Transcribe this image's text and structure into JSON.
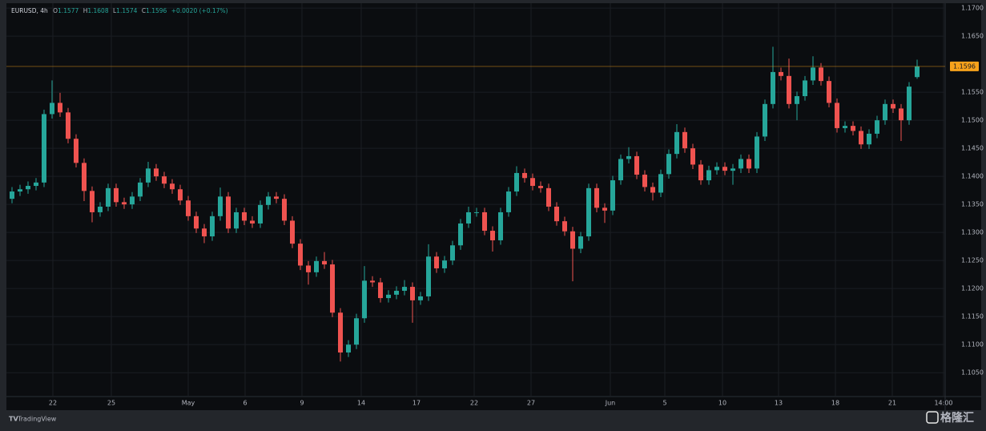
{
  "chart_data": {
    "type": "candlestick",
    "title": "EURUSD, 4h",
    "ohlc_prefixes": [
      "O",
      "H",
      "L",
      "C"
    ],
    "change_label": "+0.0020 (+0.17%)",
    "up_color": "#26a69a",
    "down_color": "#ef5350",
    "last_price_color": "#f7a21b",
    "grid": true,
    "open": [
      1.136,
      1.1373,
      1.1377,
      1.1383,
      1.1389,
      1.1511,
      1.1531,
      1.1514,
      1.1467,
      1.1424,
      1.1374,
      1.1336,
      1.1346,
      1.1379,
      1.1354,
      1.135,
      1.1364,
      1.1389,
      1.1414,
      1.14,
      1.1387,
      1.1377,
      1.1357,
      1.1329,
      1.1307,
      1.1293,
      1.1329,
      1.1364,
      1.1307,
      1.1336,
      1.1321,
      1.1316,
      1.1349,
      1.1364,
      1.136,
      1.1321,
      1.128,
      1.1241,
      1.1229,
      1.1249,
      1.1243,
      1.1157,
      1.1086,
      1.11,
      1.1147,
      1.1214,
      1.1211,
      1.1183,
      1.1189,
      1.1196,
      1.1203,
      1.1179,
      1.1186,
      1.1257,
      1.1236,
      1.125,
      1.1277,
      1.1316,
      1.1336,
      1.1336,
      1.1303,
      1.1286,
      1.1336,
      1.1373,
      1.1406,
      1.1397,
      1.1383,
      1.1379,
      1.1346,
      1.132,
      1.1302,
      1.1271,
      1.1293,
      1.1379,
      1.1344,
      1.1339,
      1.1393,
      1.1431,
      1.1436,
      1.1403,
      1.1381,
      1.1371,
      1.1404,
      1.144,
      1.1479,
      1.145,
      1.1421,
      1.1393,
      1.1411,
      1.1417,
      1.141,
      1.1414,
      1.1431,
      1.1414,
      1.1471,
      1.1529,
      1.1586,
      1.1579,
      1.1529,
      1.1543,
      1.1571,
      1.1594,
      1.157,
      1.1531,
      1.1486,
      1.149,
      1.1481,
      1.1457,
      1.1476,
      1.15,
      1.1529,
      1.1521,
      1.15,
      1.1577
    ],
    "high": [
      1.1381,
      1.1385,
      1.1391,
      1.1397,
      1.1519,
      1.1571,
      1.1549,
      1.1522,
      1.1475,
      1.1432,
      1.1382,
      1.1354,
      1.1387,
      1.1387,
      1.1362,
      1.1372,
      1.1397,
      1.1426,
      1.1422,
      1.1408,
      1.1395,
      1.1385,
      1.1365,
      1.1337,
      1.1315,
      1.1337,
      1.138,
      1.1372,
      1.1344,
      1.1344,
      1.1329,
      1.1357,
      1.1372,
      1.1372,
      1.1368,
      1.1329,
      1.1288,
      1.1249,
      1.1257,
      1.1265,
      1.1251,
      1.1165,
      1.1108,
      1.1155,
      1.124,
      1.1222,
      1.1219,
      1.1197,
      1.1204,
      1.1215,
      1.1211,
      1.1194,
      1.1279,
      1.1265,
      1.1258,
      1.1285,
      1.1324,
      1.1346,
      1.1344,
      1.1344,
      1.1311,
      1.1344,
      1.1381,
      1.1418,
      1.1414,
      1.1405,
      1.1391,
      1.1387,
      1.1354,
      1.1328,
      1.131,
      1.1301,
      1.1387,
      1.1387,
      1.1352,
      1.1401,
      1.1439,
      1.1452,
      1.1444,
      1.1411,
      1.1389,
      1.1412,
      1.1448,
      1.1493,
      1.1487,
      1.1458,
      1.1429,
      1.1419,
      1.1425,
      1.1425,
      1.1422,
      1.1439,
      1.1439,
      1.1479,
      1.1537,
      1.1631,
      1.1594,
      1.161,
      1.1551,
      1.1579,
      1.1614,
      1.1602,
      1.1578,
      1.1539,
      1.1498,
      1.1498,
      1.1489,
      1.1484,
      1.1508,
      1.1537,
      1.1537,
      1.1529,
      1.1568,
      1.1608
    ],
    "low": [
      1.1352,
      1.1365,
      1.1369,
      1.1375,
      1.1381,
      1.1503,
      1.1506,
      1.1459,
      1.1416,
      1.1356,
      1.1318,
      1.1328,
      1.1338,
      1.1346,
      1.1342,
      1.1342,
      1.1356,
      1.1381,
      1.1392,
      1.1379,
      1.1369,
      1.1349,
      1.1321,
      1.1299,
      1.1281,
      1.1285,
      1.1321,
      1.1299,
      1.1299,
      1.1313,
      1.1308,
      1.1308,
      1.1341,
      1.1352,
      1.1313,
      1.1272,
      1.1233,
      1.1207,
      1.1221,
      1.1235,
      1.1149,
      1.107,
      1.1078,
      1.1092,
      1.1139,
      1.1203,
      1.1175,
      1.1175,
      1.1181,
      1.1188,
      1.1139,
      1.1171,
      1.1178,
      1.1228,
      1.1228,
      1.1242,
      1.1269,
      1.1308,
      1.1328,
      1.1295,
      1.1266,
      1.1278,
      1.1328,
      1.1365,
      1.1389,
      1.1375,
      1.1371,
      1.1338,
      1.1312,
      1.1294,
      1.1213,
      1.1263,
      1.1285,
      1.1336,
      1.1317,
      1.1331,
      1.1385,
      1.1423,
      1.1395,
      1.1373,
      1.1357,
      1.1363,
      1.1396,
      1.1432,
      1.1442,
      1.1413,
      1.1385,
      1.1385,
      1.1403,
      1.1402,
      1.1385,
      1.1406,
      1.1406,
      1.1406,
      1.1463,
      1.1521,
      1.1571,
      1.1521,
      1.15,
      1.1535,
      1.1563,
      1.1562,
      1.1523,
      1.1478,
      1.1478,
      1.1473,
      1.1449,
      1.1449,
      1.1468,
      1.1492,
      1.1513,
      1.1463,
      1.1492,
      1.1574
    ],
    "close": [
      1.1373,
      1.1377,
      1.1383,
      1.1389,
      1.1511,
      1.1531,
      1.1514,
      1.1467,
      1.1424,
      1.1374,
      1.1336,
      1.1346,
      1.1379,
      1.1354,
      1.135,
      1.1364,
      1.1389,
      1.1414,
      1.14,
      1.1387,
      1.1377,
      1.1357,
      1.1329,
      1.1307,
      1.1293,
      1.1329,
      1.1364,
      1.1307,
      1.1336,
      1.1321,
      1.1316,
      1.1349,
      1.1364,
      1.136,
      1.1321,
      1.128,
      1.1241,
      1.1229,
      1.1249,
      1.1243,
      1.1157,
      1.1086,
      1.11,
      1.1147,
      1.1214,
      1.1211,
      1.1183,
      1.1189,
      1.1196,
      1.1203,
      1.1179,
      1.1186,
      1.1257,
      1.1236,
      1.125,
      1.1277,
      1.1316,
      1.1336,
      1.1336,
      1.1303,
      1.1286,
      1.1336,
      1.1373,
      1.1406,
      1.1397,
      1.1383,
      1.1379,
      1.1346,
      1.132,
      1.1302,
      1.1271,
      1.1293,
      1.1379,
      1.1344,
      1.1339,
      1.1393,
      1.1431,
      1.1436,
      1.1403,
      1.1381,
      1.1371,
      1.1404,
      1.144,
      1.1479,
      1.145,
      1.1421,
      1.1393,
      1.1411,
      1.1417,
      1.141,
      1.1414,
      1.1431,
      1.1414,
      1.1471,
      1.1529,
      1.1586,
      1.1579,
      1.1529,
      1.1543,
      1.1571,
      1.1594,
      1.157,
      1.1531,
      1.1486,
      1.149,
      1.1481,
      1.1457,
      1.1476,
      1.15,
      1.1529,
      1.1521,
      1.15,
      1.156,
      1.1596
    ],
    "xlim": [
      0,
      117
    ],
    "xticks": [
      {
        "value": 5.6,
        "label": "22"
      },
      {
        "value": 12.9,
        "label": "25"
      },
      {
        "value": 22.5,
        "label": "May"
      },
      {
        "value": 29.6,
        "label": "6"
      },
      {
        "value": 36.7,
        "label": "9"
      },
      {
        "value": 44.1,
        "label": "14"
      },
      {
        "value": 51,
        "label": "17"
      },
      {
        "value": 58.2,
        "label": "22"
      },
      {
        "value": 65.3,
        "label": "27"
      },
      {
        "value": 75.2,
        "label": "Jun"
      },
      {
        "value": 82,
        "label": "5"
      },
      {
        "value": 89.2,
        "label": "10"
      },
      {
        "value": 96.2,
        "label": "13"
      },
      {
        "value": 103.3,
        "label": "18"
      },
      {
        "value": 110.4,
        "label": "21"
      },
      {
        "value": 116.8,
        "label": "14:00"
      }
    ],
    "ylim": [
      1.0986,
      1.1703
    ],
    "yticks": [
      {
        "value": 1.105,
        "label": "1.1050"
      },
      {
        "value": 1.11,
        "label": "1.1100"
      },
      {
        "value": 1.115,
        "label": "1.1150"
      },
      {
        "value": 1.12,
        "label": "1.1200"
      },
      {
        "value": 1.125,
        "label": "1.1250"
      },
      {
        "value": 1.13,
        "label": "1.1300"
      },
      {
        "value": 1.135,
        "label": "1.1350"
      },
      {
        "value": 1.14,
        "label": "1.1400"
      },
      {
        "value": 1.145,
        "label": "1.1450"
      },
      {
        "value": 1.15,
        "label": "1.1500"
      },
      {
        "value": 1.155,
        "label": "1.1550"
      },
      {
        "value": 1.165,
        "label": "1.1650"
      },
      {
        "value": 1.17,
        "label": "1.1700"
      }
    ],
    "footer": {
      "brand": "TradingView",
      "watermark": "格隆汇"
    }
  }
}
